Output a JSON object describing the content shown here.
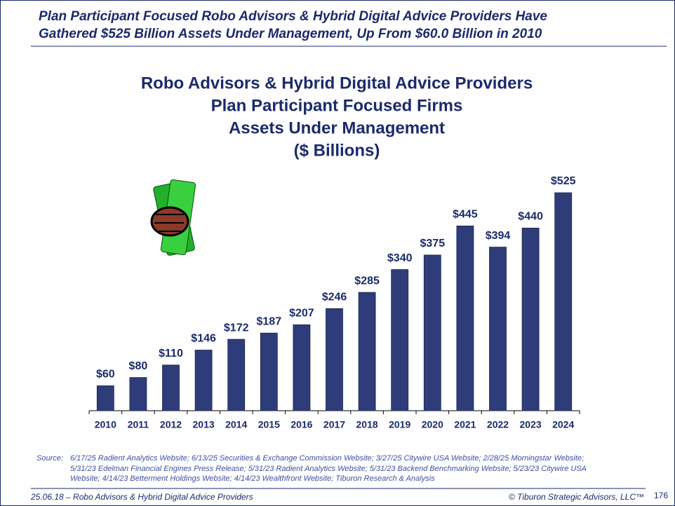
{
  "header": {
    "title_lines": [
      "Plan Participant Focused Robo Advisors & Hybrid Digital Advice Providers Have",
      "Gathered $525 Billion Assets Under Management, Up From $60.0 Billion in 2010"
    ]
  },
  "chart_data": {
    "type": "bar",
    "title_lines": [
      "Robo Advisors & Hybrid Digital Advice Providers",
      "Plan Participant Focused Firms",
      "Assets Under Management",
      "($ Billions)"
    ],
    "categories": [
      "2010",
      "2011",
      "2012",
      "2013",
      "2014",
      "2015",
      "2016",
      "2017",
      "2018",
      "2019",
      "2020",
      "2021",
      "2022",
      "2023",
      "2024"
    ],
    "values": [
      60,
      80,
      110,
      146,
      172,
      187,
      207,
      246,
      285,
      340,
      375,
      445,
      394,
      440,
      525
    ],
    "value_labels": [
      "$60",
      "$80",
      "$110",
      "$146",
      "$172",
      "$187",
      "$207",
      "$246",
      "$285",
      "$340",
      "$375",
      "$445",
      "$394",
      "$440",
      "$525"
    ],
    "color": "#2e3d7a"
  },
  "source": {
    "label": "Source:",
    "lines": [
      "6/17/25 Radient Analytics Website; 6/13/25 Securities & Exchange Commission Website; 3/27/25 Citywire USA Website; 2/28/25 Morningstar Website;",
      "5/31/23 Edelman Financial Engines Press Release; 5/31/23 Radient Analytics Website; 5/31/23 Backend Benchmarking Website;  5/23/23 Citywire USA",
      "Website; 4/14/23 Betterment Holdings Website; 4/14/23 Wealthfront Website; Tiburon Research & Analysis"
    ]
  },
  "footer": {
    "left": "25.06.18 – Robo Advisors & Hybrid Digital Advice Providers",
    "right": "© Tiburon Strategic Advisors, LLC™",
    "page": "176"
  }
}
